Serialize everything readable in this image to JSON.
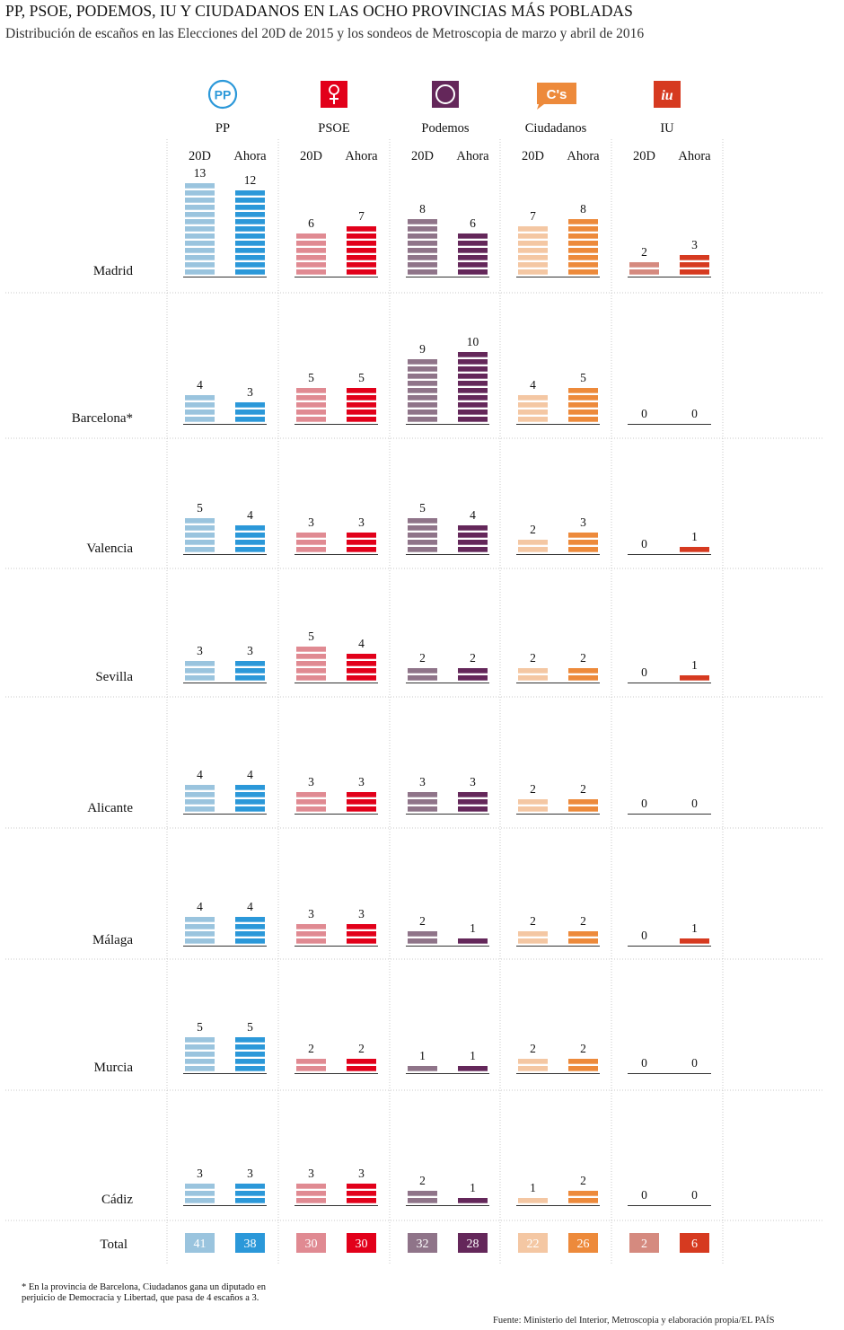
{
  "title": "PP, PSOE, PODEMOS, IU Y CIUDADANOS EN LAS OCHO PROVINCIAS MÁS POBLADAS",
  "subtitle": "Distribución de escaños en las Elecciones del 20D de 2015 y los sondeos de Metroscopia de marzo y abril de 2016",
  "footnote": "* En la provincia de Barcelona, Ciudadanos gana un diputado en perjuicio de Democracia y Libertad, que pasa de 4 escaños a 3.",
  "source": "Fuente: Ministerio del Interior, Metroscopia y elaboración propia/EL PAÍS",
  "chart_data": {
    "type": "bar",
    "periods": [
      "20D",
      "Ahora"
    ],
    "total_label": "Total",
    "parties": [
      {
        "name": "PP",
        "logo": "PP",
        "icon": "pp-logo-icon",
        "color_20d": "#9ac4de",
        "color_ahora": "#2b98d9"
      },
      {
        "name": "PSOE",
        "logo": "",
        "icon": "psoe-logo-icon",
        "color_20d": "#e08a92",
        "color_ahora": "#e2001a"
      },
      {
        "name": "Podemos",
        "logo": "",
        "icon": "podemos-logo-icon",
        "color_20d": "#8f7489",
        "color_ahora": "#64275a"
      },
      {
        "name": "Ciudadanos",
        "logo": "C's",
        "icon": "ciudadanos-logo-icon",
        "color_20d": "#f4c7a3",
        "color_ahora": "#ed8a3b"
      },
      {
        "name": "IU",
        "logo": "iu",
        "icon": "iu-logo-icon",
        "color_20d": "#d58a7f",
        "color_ahora": "#d63a20"
      }
    ],
    "provinces": [
      {
        "name": "Madrid",
        "values": [
          [
            13,
            12
          ],
          [
            6,
            7
          ],
          [
            8,
            6
          ],
          [
            7,
            8
          ],
          [
            2,
            3
          ]
        ]
      },
      {
        "name": "Barcelona*",
        "values": [
          [
            4,
            3
          ],
          [
            5,
            5
          ],
          [
            9,
            10
          ],
          [
            4,
            5
          ],
          [
            0,
            0
          ]
        ]
      },
      {
        "name": "Valencia",
        "values": [
          [
            5,
            4
          ],
          [
            3,
            3
          ],
          [
            5,
            4
          ],
          [
            2,
            3
          ],
          [
            0,
            1
          ]
        ]
      },
      {
        "name": "Sevilla",
        "values": [
          [
            3,
            3
          ],
          [
            5,
            4
          ],
          [
            2,
            2
          ],
          [
            2,
            2
          ],
          [
            0,
            1
          ]
        ]
      },
      {
        "name": "Alicante",
        "values": [
          [
            4,
            4
          ],
          [
            3,
            3
          ],
          [
            3,
            3
          ],
          [
            2,
            2
          ],
          [
            0,
            0
          ]
        ]
      },
      {
        "name": "Málaga",
        "values": [
          [
            4,
            4
          ],
          [
            3,
            3
          ],
          [
            2,
            1
          ],
          [
            2,
            2
          ],
          [
            0,
            1
          ]
        ]
      },
      {
        "name": "Murcia",
        "values": [
          [
            5,
            5
          ],
          [
            2,
            2
          ],
          [
            1,
            1
          ],
          [
            2,
            2
          ],
          [
            0,
            0
          ]
        ]
      },
      {
        "name": "Cádiz",
        "values": [
          [
            3,
            3
          ],
          [
            3,
            3
          ],
          [
            2,
            1
          ],
          [
            1,
            2
          ],
          [
            0,
            0
          ]
        ]
      }
    ],
    "totals": [
      [
        41,
        38
      ],
      [
        30,
        30
      ],
      [
        32,
        28
      ],
      [
        22,
        26
      ],
      [
        2,
        6
      ]
    ]
  }
}
